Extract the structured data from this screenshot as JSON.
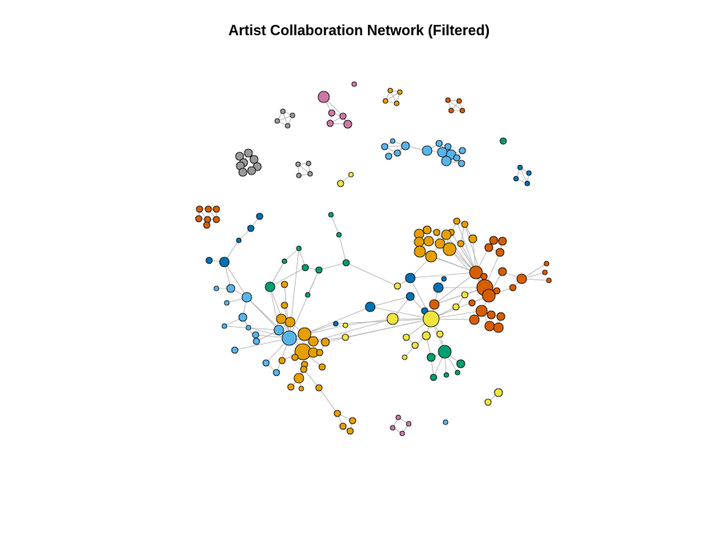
{
  "title": "Artist Collaboration Network (Filtered)",
  "palette": {
    "orange": "#E69F00",
    "sky": "#56B4E9",
    "green": "#009E73",
    "yellow": "#F0E442",
    "blue": "#0072B2",
    "vermillion": "#D55E00",
    "pink": "#CC79A7",
    "gray": "#999999"
  }
}
